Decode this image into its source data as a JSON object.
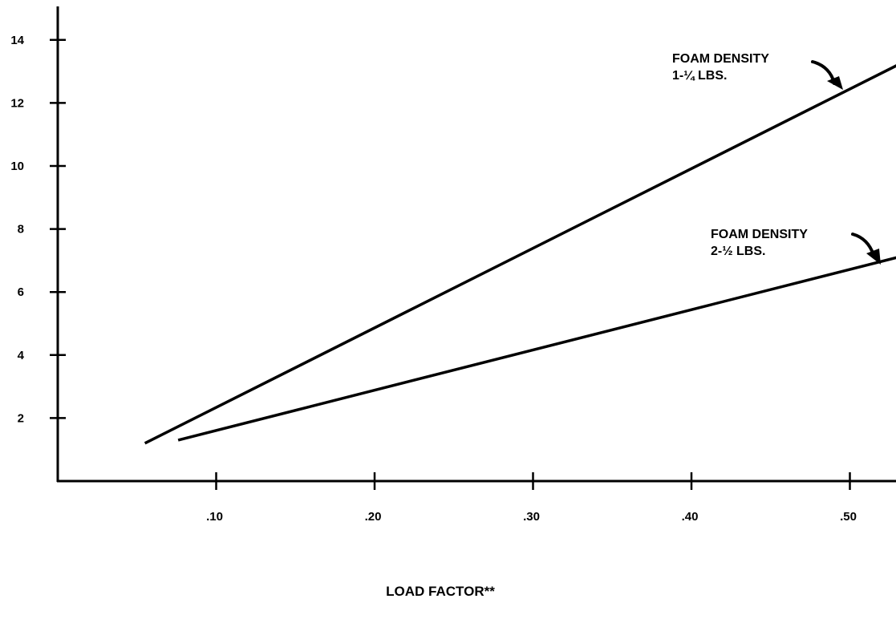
{
  "chart_data": {
    "type": "line",
    "title": "",
    "xlabel": "LOAD FACTOR**",
    "ylabel": "",
    "xlim": [
      0,
      0.53
    ],
    "ylim": [
      0,
      15
    ],
    "x_ticks": [
      {
        "value": 0.1,
        "label": ".10"
      },
      {
        "value": 0.2,
        "label": ".20"
      },
      {
        "value": 0.3,
        "label": ".30"
      },
      {
        "value": 0.4,
        "label": ".40"
      },
      {
        "value": 0.5,
        "label": ".50"
      }
    ],
    "y_ticks": [
      {
        "value": 2,
        "label": "2"
      },
      {
        "value": 4,
        "label": "4"
      },
      {
        "value": 6,
        "label": "6"
      },
      {
        "value": 8,
        "label": "8"
      },
      {
        "value": 10,
        "label": "10"
      },
      {
        "value": 12,
        "label": "12"
      },
      {
        "value": 14,
        "label": "14"
      }
    ],
    "grid": false,
    "series": [
      {
        "x": [
          0.055,
          0.53
        ],
        "y": [
          1.2,
          13.2
        ],
        "annotation": [
          "FOAM DENSITY",
          "1-¼ LBS."
        ]
      },
      {
        "x": [
          0.076,
          0.53
        ],
        "y": [
          1.3,
          7.1
        ],
        "annotation": [
          "FOAM DENSITY",
          "2-½ LBS."
        ]
      }
    ]
  }
}
